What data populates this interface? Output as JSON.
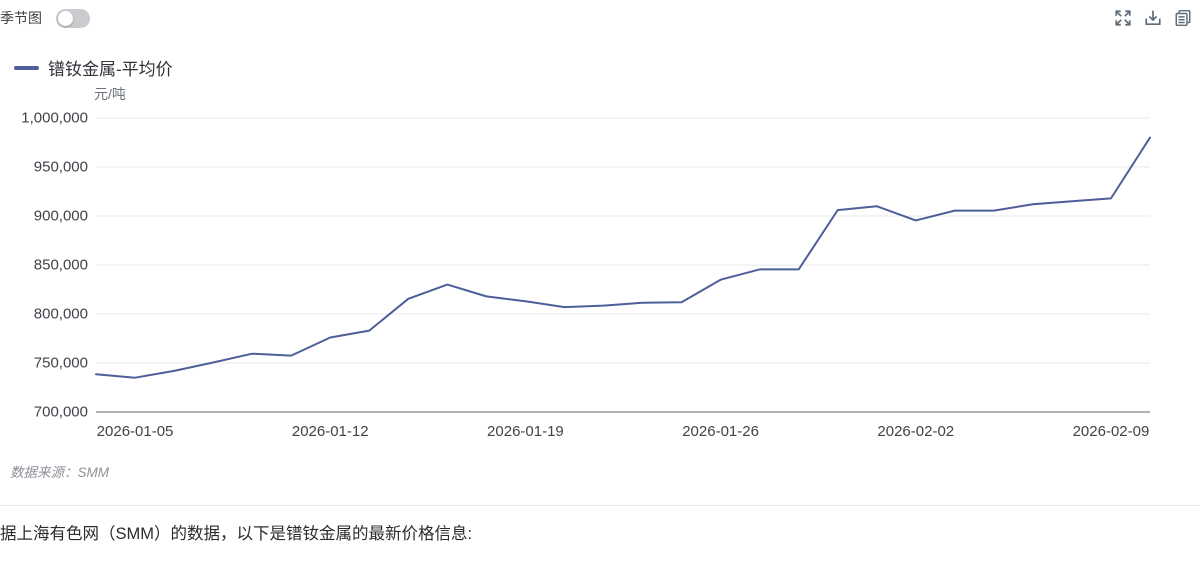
{
  "toolbar": {
    "seasonal_toggle_label": "季节图",
    "seasonal_toggle_state": "off",
    "icons": [
      {
        "name": "fullscreen"
      },
      {
        "name": "download"
      },
      {
        "name": "copy"
      }
    ]
  },
  "legend": {
    "label": "镨钕金属-平均价",
    "color": "#4e5e99"
  },
  "chart_data": {
    "type": "line",
    "title": "镨钕金属-平均价",
    "ylabel": "元/吨",
    "xlabel": "",
    "ylim": [
      700000,
      1000000
    ],
    "ytick_interval": 50000,
    "grid": true,
    "legend_position": "top-left",
    "colors": {
      "line": "#4e5e99",
      "grid": "#e9e9e9",
      "axis": "#999999"
    },
    "x": [
      "2026-01-02",
      "2026-01-05",
      "2026-01-06",
      "2026-01-07",
      "2026-01-08",
      "2026-01-09",
      "2026-01-12",
      "2026-01-13",
      "2026-01-14",
      "2026-01-15",
      "2026-01-16",
      "2026-01-19",
      "2026-01-20",
      "2026-01-21",
      "2026-01-22",
      "2026-01-23",
      "2026-01-26",
      "2026-01-27",
      "2026-01-28",
      "2026-01-29",
      "2026-01-30",
      "2026-02-02",
      "2026-02-03",
      "2026-02-04",
      "2026-02-05",
      "2026-02-06",
      "2026-02-09",
      "2026-02-10"
    ],
    "series": [
      {
        "name": "镨钕金属-平均价",
        "values": [
          738500,
          735000,
          742000,
          750500,
          759500,
          757500,
          776000,
          783000,
          815500,
          830000,
          818000,
          813000,
          807000,
          808500,
          811500,
          812000,
          835000,
          845500,
          845500,
          906000,
          910000,
          895500,
          905500,
          905500,
          912000,
          915000,
          918000,
          980000
        ]
      }
    ],
    "x_label_indices": [
      1,
      6,
      11,
      16,
      21,
      26
    ],
    "x_axis_labels": [
      "2026-01-05",
      "2026-01-12",
      "2026-01-19",
      "2026-01-26",
      "2026-02-02",
      "2026-02-09"
    ],
    "y_axis_labels": [
      "1,000,000",
      "950,000",
      "900,000",
      "850,000",
      "800,000",
      "750,000",
      "700,000"
    ]
  },
  "source": {
    "text": "数据来源：SMM"
  },
  "footer": {
    "text": "据上海有色网（SMM）的数据，以下是镨钕金属的最新价格信息:"
  }
}
